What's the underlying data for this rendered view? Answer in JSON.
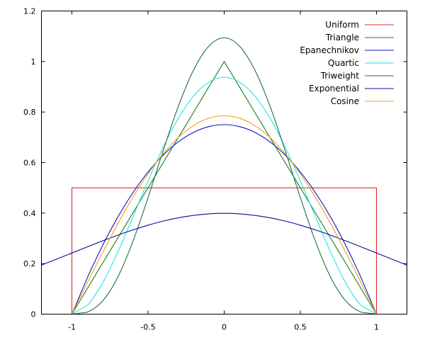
{
  "chart_data": {
    "type": "line",
    "title": "",
    "xlabel": "",
    "ylabel": "",
    "xlim": [
      -1.2,
      1.2
    ],
    "ylim": [
      0,
      1.2
    ],
    "grid": false,
    "legend_position": "top-right",
    "x_ticks": [
      {
        "value": -1,
        "label": "-1"
      },
      {
        "value": -0.5,
        "label": "-0.5"
      },
      {
        "value": 0,
        "label": "0"
      },
      {
        "value": 0.5,
        "label": "0.5"
      },
      {
        "value": 1,
        "label": "1"
      }
    ],
    "y_ticks": [
      {
        "value": 0,
        "label": "0"
      },
      {
        "value": 0.2,
        "label": "0.2"
      },
      {
        "value": 0.4,
        "label": "0.4"
      },
      {
        "value": 0.6,
        "label": "0.6"
      },
      {
        "value": 0.8,
        "label": "0.8"
      },
      {
        "value": 1,
        "label": "1"
      },
      {
        "value": 1.2,
        "label": "1.2"
      }
    ],
    "series": [
      {
        "name": "Uniform",
        "color": "#e8282b",
        "x": [
          -1.2,
          -1,
          -1,
          1,
          1,
          1.2
        ],
        "y": [
          0,
          0,
          0.5,
          0.5,
          0,
          0
        ]
      },
      {
        "name": "Triangle",
        "color": "#1a7d1a",
        "x": [
          -1.2,
          -1,
          0,
          1,
          1.2
        ],
        "y": [
          0,
          0,
          1,
          0,
          0
        ]
      },
      {
        "name": "Epanechnikov",
        "color": "#1515c8",
        "x": [
          -1.2,
          -1,
          -0.9,
          -0.8,
          -0.7,
          -0.6,
          -0.5,
          -0.4,
          -0.3,
          -0.2,
          -0.1,
          0,
          0.1,
          0.2,
          0.3,
          0.4,
          0.5,
          0.6,
          0.7,
          0.8,
          0.9,
          1,
          1.2
        ],
        "y": [
          0,
          0,
          0.1425,
          0.27,
          0.3825,
          0.48,
          0.5625,
          0.63,
          0.6825,
          0.72,
          0.7425,
          0.75,
          0.7425,
          0.72,
          0.6825,
          0.63,
          0.5625,
          0.48,
          0.3825,
          0.27,
          0.1425,
          0,
          0
        ]
      },
      {
        "name": "Quartic",
        "color": "#22e6e6",
        "x": [
          -1.2,
          -1,
          -0.9,
          -0.8,
          -0.7,
          -0.6,
          -0.5,
          -0.4,
          -0.3,
          -0.2,
          -0.1,
          0,
          0.1,
          0.2,
          0.3,
          0.4,
          0.5,
          0.6,
          0.7,
          0.8,
          0.9,
          1,
          1.2
        ],
        "y": [
          0,
          0,
          0.0338,
          0.1215,
          0.2439,
          0.384,
          0.5273,
          0.6615,
          0.7765,
          0.864,
          0.9188,
          0.9375,
          0.9188,
          0.864,
          0.7765,
          0.6615,
          0.5273,
          0.384,
          0.2439,
          0.1215,
          0.0338,
          0,
          0
        ]
      },
      {
        "name": "Triweight",
        "color": "#1f6e48",
        "x": [
          -1.2,
          -1,
          -0.9,
          -0.8,
          -0.7,
          -0.6,
          -0.5,
          -0.4,
          -0.3,
          -0.2,
          -0.1,
          0,
          0.1,
          0.2,
          0.3,
          0.4,
          0.5,
          0.6,
          0.7,
          0.8,
          0.9,
          1,
          1.2
        ],
        "y": [
          0,
          0,
          0.0075,
          0.0511,
          0.1449,
          0.2867,
          0.4614,
          0.6483,
          0.8245,
          0.9676,
          1.0613,
          1.0938,
          1.0613,
          0.9676,
          0.8245,
          0.6483,
          0.4614,
          0.2867,
          0.1449,
          0.0511,
          0.0075,
          0,
          0
        ]
      },
      {
        "name": "Exponential",
        "color": "#0c0c9c",
        "x": [
          -1.2,
          -1.1,
          -1,
          -0.9,
          -0.8,
          -0.7,
          -0.6,
          -0.5,
          -0.4,
          -0.3,
          -0.2,
          -0.1,
          0,
          0.1,
          0.2,
          0.3,
          0.4,
          0.5,
          0.6,
          0.7,
          0.8,
          0.9,
          1,
          1.1,
          1.2
        ],
        "y": [
          0.1942,
          0.2179,
          0.242,
          0.2661,
          0.2897,
          0.3123,
          0.3332,
          0.3521,
          0.3683,
          0.3814,
          0.391,
          0.397,
          0.3989,
          0.397,
          0.391,
          0.3814,
          0.3683,
          0.3521,
          0.3332,
          0.3123,
          0.2897,
          0.2661,
          0.242,
          0.2179,
          0.1942
        ]
      },
      {
        "name": "Cosine",
        "color": "#f0a020",
        "x": [
          -1.2,
          -1,
          -0.9,
          -0.8,
          -0.7,
          -0.6,
          -0.5,
          -0.4,
          -0.3,
          -0.2,
          -0.1,
          0,
          0.1,
          0.2,
          0.3,
          0.4,
          0.5,
          0.6,
          0.7,
          0.8,
          0.9,
          1,
          1.2
        ],
        "y": [
          0,
          0,
          0.1229,
          0.2427,
          0.3566,
          0.4617,
          0.5554,
          0.6354,
          0.6998,
          0.747,
          0.7757,
          0.7854,
          0.7757,
          0.747,
          0.6998,
          0.6354,
          0.5554,
          0.4617,
          0.3566,
          0.2427,
          0.1229,
          0,
          0
        ]
      }
    ]
  }
}
